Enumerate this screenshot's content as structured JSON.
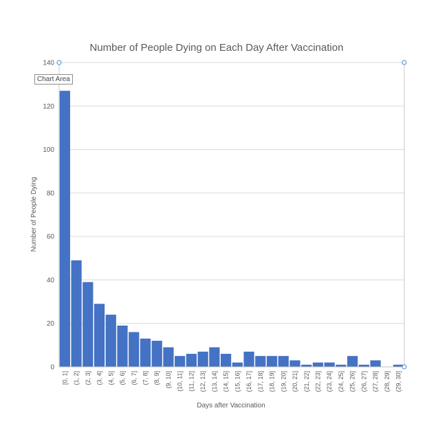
{
  "chart_data": {
    "type": "bar",
    "title": "Number of People Dying on Each Day After Vaccination",
    "xlabel": "Days after Vaccination",
    "ylabel": "Number of People Dying",
    "ylim": [
      0,
      140
    ],
    "yticks": [
      0,
      20,
      40,
      60,
      80,
      100,
      120,
      140
    ],
    "grid": true,
    "legend": "none",
    "bar_color": "#4472C4",
    "categories": [
      "[0, 1]",
      "(1, 2]",
      "(2, 3]",
      "(3, 4]",
      "(4, 5]",
      "(5, 6]",
      "(6, 7]",
      "(7, 8]",
      "(8, 9]",
      "(9, 10]",
      "(10, 11]",
      "(11, 12]",
      "(12, 13]",
      "(13, 14]",
      "(14, 15]",
      "(15, 16]",
      "(16, 17]",
      "(17, 18]",
      "(18, 19]",
      "(19, 20]",
      "(20, 21]",
      "(21, 22]",
      "(22, 23]",
      "(23, 24]",
      "(24, 25]",
      "(25, 26]",
      "(26, 27]",
      "(27, 28]",
      "(28, 29]",
      "(29, 30]"
    ],
    "values": [
      127,
      49,
      39,
      29,
      24,
      19,
      16,
      13,
      12,
      9,
      5,
      6,
      7,
      9,
      6,
      2,
      7,
      5,
      5,
      5,
      3,
      1,
      2,
      2,
      1,
      5,
      1,
      3,
      0,
      1
    ]
  },
  "ui": {
    "tooltip": "Chart Area"
  }
}
